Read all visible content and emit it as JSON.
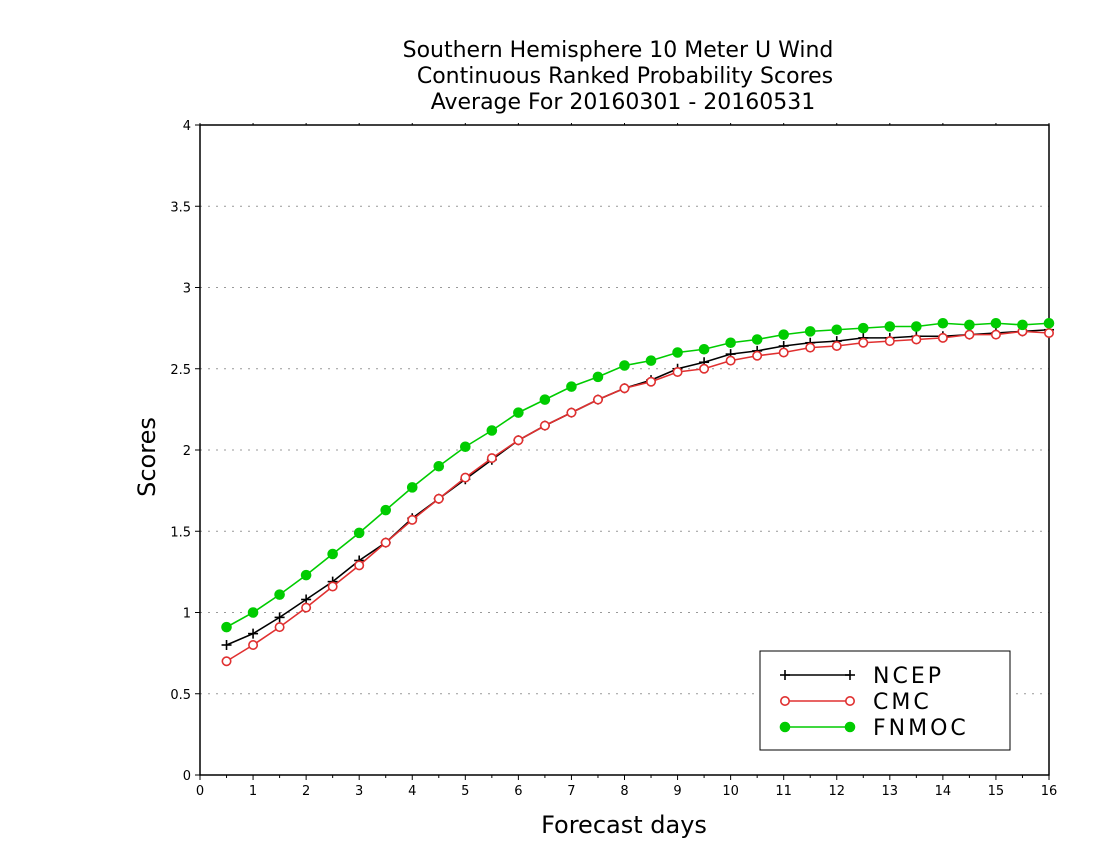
{
  "chart_data": {
    "type": "line",
    "title": [
      "Southern Hemisphere 10 Meter U Wind",
      "Continuous Ranked Probability Scores",
      "Average For 20160301 - 20160531"
    ],
    "xlabel": "Forecast days",
    "ylabel": "Scores",
    "xlim": [
      0,
      16
    ],
    "ylim": [
      0,
      4
    ],
    "xticks": [
      "0",
      "1",
      "2",
      "3",
      "4",
      "5",
      "6",
      "7",
      "8",
      "9",
      "10",
      "11",
      "12",
      "13",
      "14",
      "15",
      "16"
    ],
    "yticks": [
      "0",
      "0.5",
      "1",
      "1.5",
      "2",
      "2.5",
      "3",
      "3.5",
      "4"
    ],
    "grid": true,
    "legend_position": "bottom-right",
    "x": [
      0.5,
      1,
      1.5,
      2,
      2.5,
      3,
      3.5,
      4,
      4.5,
      5,
      5.5,
      6,
      6.5,
      7,
      7.5,
      8,
      8.5,
      9,
      9.5,
      10,
      10.5,
      11,
      11.5,
      12,
      12.5,
      13,
      13.5,
      14,
      14.5,
      15,
      15.5,
      16
    ],
    "series": [
      {
        "name": "NCEP",
        "color": "#000000",
        "marker": "plus",
        "values": [
          0.8,
          0.87,
          0.97,
          1.08,
          1.19,
          1.32,
          1.43,
          1.58,
          1.7,
          1.82,
          1.94,
          2.06,
          2.15,
          2.23,
          2.31,
          2.38,
          2.43,
          2.5,
          2.54,
          2.59,
          2.61,
          2.64,
          2.66,
          2.67,
          2.69,
          2.69,
          2.7,
          2.7,
          2.71,
          2.72,
          2.73,
          2.74
        ]
      },
      {
        "name": "CMC",
        "color": "#e03030",
        "marker": "open-circle",
        "values": [
          0.7,
          0.8,
          0.91,
          1.03,
          1.16,
          1.29,
          1.43,
          1.57,
          1.7,
          1.83,
          1.95,
          2.06,
          2.15,
          2.23,
          2.31,
          2.38,
          2.42,
          2.48,
          2.5,
          2.55,
          2.58,
          2.6,
          2.63,
          2.64,
          2.66,
          2.67,
          2.68,
          2.69,
          2.71,
          2.71,
          2.73,
          2.72
        ]
      },
      {
        "name": "FNMOC",
        "color": "#00cc00",
        "marker": "filled-circle",
        "values": [
          0.91,
          1.0,
          1.11,
          1.23,
          1.36,
          1.49,
          1.63,
          1.77,
          1.9,
          2.02,
          2.12,
          2.23,
          2.31,
          2.39,
          2.45,
          2.52,
          2.55,
          2.6,
          2.62,
          2.66,
          2.68,
          2.71,
          2.73,
          2.74,
          2.75,
          2.76,
          2.76,
          2.78,
          2.77,
          2.78,
          2.77,
          2.78
        ]
      }
    ]
  }
}
